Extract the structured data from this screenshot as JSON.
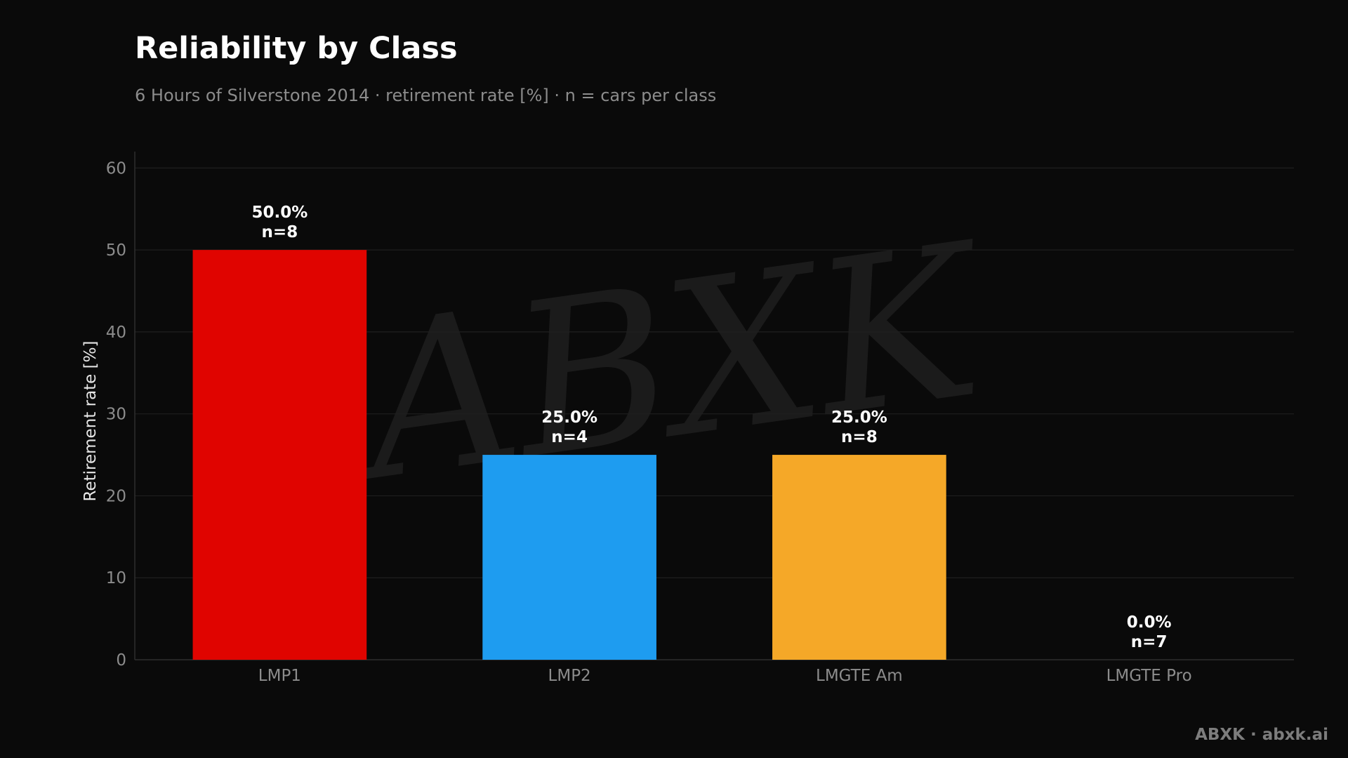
{
  "header": {
    "title": "Reliability by Class",
    "subtitle": "6 Hours of Silverstone 2014 · retirement rate [%] · n = cars per class"
  },
  "footer": {
    "brand": "ABXK · abxk.ai"
  },
  "colors": {
    "background": "#0a0a0a",
    "grid": "#1f1f1f",
    "axis": "#2e2e2e",
    "watermark": "#1b1b1b"
  },
  "watermark_text": "ABXK",
  "chart_data": {
    "type": "bar",
    "title": "Reliability by Class",
    "subtitle": "6 Hours of Silverstone 2014 · retirement rate [%] · n = cars per class",
    "xlabel": "",
    "ylabel": "Retirement rate [%]",
    "ylim": [
      0,
      62
    ],
    "yticks": [
      0,
      10,
      20,
      30,
      40,
      50,
      60
    ],
    "grid": true,
    "legend": "none",
    "categories": [
      "LMP1",
      "LMP2",
      "LMGTE Am",
      "LMGTE Pro"
    ],
    "values": [
      50.0,
      25.0,
      25.0,
      0.0
    ],
    "counts": [
      8,
      4,
      8,
      7
    ],
    "value_labels": [
      "50.0%",
      "25.0%",
      "25.0%",
      "0.0%"
    ],
    "count_labels": [
      "n=8",
      "n=4",
      "n=8",
      "n=7"
    ],
    "bar_colors": [
      "#e00400",
      "#1e9cf0",
      "#f5a828",
      "#0a0a0a"
    ]
  }
}
